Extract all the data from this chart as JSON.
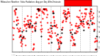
{
  "title": "Milwaukee Weather  Solar Radiation",
  "subtitle": "Avg per Day W/m2/minute",
  "bg_color": "#ffffff",
  "red_color": "#ff0000",
  "black_color": "#000000",
  "grid_color": "#aaaaaa",
  "ylim": [
    0,
    9
  ],
  "ytick_vals": [
    1,
    2,
    3,
    4,
    5,
    6,
    7,
    8
  ],
  "xlim": [
    0,
    266
  ],
  "vlines": [
    31,
    59,
    90,
    120,
    151,
    181,
    212,
    243
  ],
  "marker_size": 2.5,
  "n_days": 265,
  "seed": 17
}
